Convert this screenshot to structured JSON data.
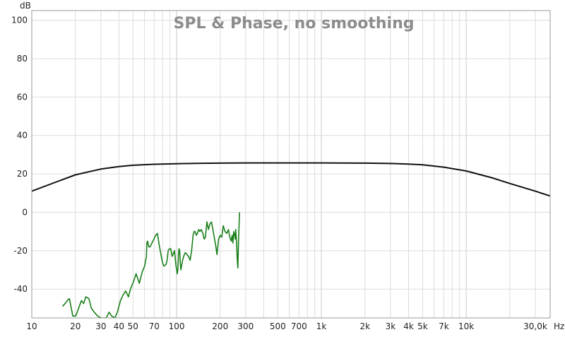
{
  "chart_data": {
    "type": "line",
    "title": "SPL & Phase, no smoothing",
    "xlabel": "Hz",
    "ylabel": "dB",
    "x_scale": "log",
    "xlim": [
      10,
      38000
    ],
    "ylim": [
      -55,
      105
    ],
    "grid": true,
    "x_ticks": [
      10,
      20,
      30,
      40,
      50,
      70,
      100,
      200,
      300,
      500,
      700,
      1000,
      2000,
      3000,
      4000,
      5000,
      7000,
      10000,
      30000
    ],
    "x_tick_labels": [
      "10",
      "20",
      "30",
      "40",
      "50",
      "70",
      "100",
      "200",
      "300",
      "500",
      "700",
      "1k",
      "2k",
      "3k",
      "4k",
      "5k",
      "7k",
      "10k",
      "30,0k"
    ],
    "x_unit_label": "Hz",
    "y_ticks": [
      100,
      80,
      60,
      40,
      20,
      0,
      -20,
      -40
    ],
    "y_tick_labels": [
      "100",
      "80",
      "60",
      "40",
      "20",
      "0",
      "-20",
      "-40"
    ],
    "series": [
      {
        "color": "#111111",
        "x": [
          10,
          15,
          20,
          30,
          40,
          50,
          70,
          100,
          150,
          200,
          300,
          500,
          700,
          1000,
          2000,
          3000,
          4000,
          5000,
          7000,
          10000,
          15000,
          20000,
          30000,
          38000
        ],
        "y": [
          11,
          16,
          19.5,
          22.5,
          23.8,
          24.5,
          25,
          25.3,
          25.5,
          25.6,
          25.7,
          25.7,
          25.7,
          25.7,
          25.6,
          25.4,
          25.1,
          24.7,
          23.5,
          21.5,
          18,
          15,
          11,
          8.5
        ]
      },
      {
        "color": "#1a7f1a",
        "x": [
          16.3,
          17.2,
          17.8,
          18.2,
          19.2,
          20.1,
          21.3,
          22,
          22.8,
          23.6,
          24.8,
          25.8,
          27,
          28.5,
          30,
          31.2,
          32.7,
          34.2,
          35.6,
          37.5,
          39,
          41,
          42.7,
          44.5,
          46.5,
          48,
          50.5,
          52.5,
          55.3,
          57.9,
          60.2,
          61.9,
          62.3,
          63,
          64.3,
          65.7,
          68.6,
          71.7,
          73.7,
          75.8,
          78.9,
          80.5,
          81.9,
          84.7,
          86,
          87.5,
          89.3,
          91.2,
          93.2,
          96.7,
          98.7,
          101,
          102,
          103,
          104,
          105,
          106,
          107,
          110,
          113,
          115,
          118,
          121,
          124,
          127,
          130,
          132,
          134,
          137,
          139,
          142,
          145,
          148,
          152,
          155,
          158,
          162,
          166,
          170,
          174,
          178,
          182,
          186,
          190,
          195,
          200,
          205,
          210,
          216,
          222,
          228,
          233,
          238,
          242,
          245,
          248,
          250,
          252,
          254,
          256,
          258,
          260,
          262,
          265,
          268,
          272
        ],
        "y": [
          -49,
          -47,
          -45.5,
          -45,
          -54,
          -54,
          -49,
          -46,
          -47.5,
          -44,
          -45,
          -50,
          -52,
          -54,
          -55,
          -55,
          -55,
          -52,
          -54,
          -55,
          -52,
          -46,
          -43,
          -41,
          -44,
          -40,
          -36,
          -32,
          -37,
          -31,
          -28,
          -23,
          -16,
          -15,
          -18,
          -18,
          -15,
          -12,
          -11,
          -17,
          -24,
          -27,
          -28,
          -27,
          -25,
          -20,
          -19,
          -19,
          -23,
          -20,
          -27,
          -32,
          -30,
          -22,
          -19,
          -20,
          -26,
          -30,
          -25,
          -22,
          -21,
          -22,
          -23,
          -25,
          -20,
          -12,
          -10,
          -10,
          -12,
          -11,
          -9,
          -10,
          -9,
          -11,
          -14,
          -13,
          -5,
          -9,
          -6,
          -5,
          -9,
          -13,
          -17,
          -22,
          -14,
          -12,
          -13,
          -7,
          -10,
          -11,
          -9,
          -13,
          -15,
          -12,
          -16,
          -10,
          -12,
          -11,
          -14,
          -9,
          -13,
          -16,
          -24,
          -29,
          -14,
          0
        ]
      }
    ]
  }
}
